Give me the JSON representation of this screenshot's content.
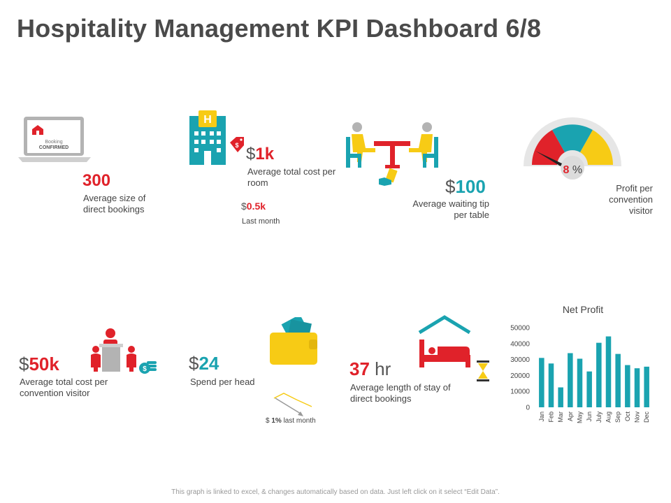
{
  "title": "Hospitality Management KPI Dashboard 6/8",
  "kpis": {
    "bookings": {
      "screen_line1": "Booking",
      "screen_line2": "CONFIRMED",
      "value": "300",
      "label": "Average size of direct bookings"
    },
    "room_cost": {
      "prefix": "$",
      "value": "1k",
      "label": "Average total cost per room",
      "sub_prefix": "$",
      "sub_value": "0.5k",
      "sub_label": "Last month",
      "tag": "$"
    },
    "tip": {
      "prefix": "$",
      "value": "100",
      "label": "Average waiting tip per table"
    },
    "profit_gauge": {
      "value": "8",
      "unit": "%",
      "label": "Profit per convention visitor"
    },
    "convention_cost": {
      "prefix": "$",
      "value": "50k",
      "label": "Average total cost per convention visitor",
      "coin_symbol": "$"
    },
    "spend": {
      "prefix": "$",
      "value": "24",
      "label": "Spend per head",
      "sub_prefix": "$",
      "sub_value": "1%",
      "sub_label": " last month"
    },
    "stay": {
      "value": "37",
      "unit": " hr",
      "label": "Average length of stay of direct bookings"
    }
  },
  "colors": {
    "red": "#e0222a",
    "teal": "#1aa3b0",
    "yellow": "#f7cb15",
    "grey": "#b3b3b3"
  },
  "icons": [
    "laptop-home-icon",
    "hotel-building-icon",
    "price-tag-icon",
    "restaurant-table-icon",
    "tip-hand-icon",
    "gauge-icon",
    "podium-speaker-icon",
    "coin-stack-icon",
    "wallet-icon",
    "trend-down-icon",
    "bed-icon",
    "hourglass-icon"
  ],
  "chart_data": {
    "type": "bar",
    "title": "Net Profit",
    "categories": [
      "Jan",
      "Feb",
      "Mar",
      "Apr",
      "May",
      "Jun",
      "July",
      "Aug",
      "Sep",
      "Oct",
      "Nov",
      "Dec"
    ],
    "values": [
      31000,
      27500,
      12500,
      34000,
      30500,
      22500,
      40500,
      44500,
      33500,
      26500,
      24500,
      25500
    ],
    "ylim": [
      0,
      50000
    ],
    "yticks": [
      "0",
      "10000",
      "20000",
      "30000",
      "40000",
      "50000"
    ],
    "color": "#1aa3b0",
    "grid": false
  },
  "footer": "This graph is linked to excel, & changes automatically based on data. Just left click on it select “Edit Data”."
}
